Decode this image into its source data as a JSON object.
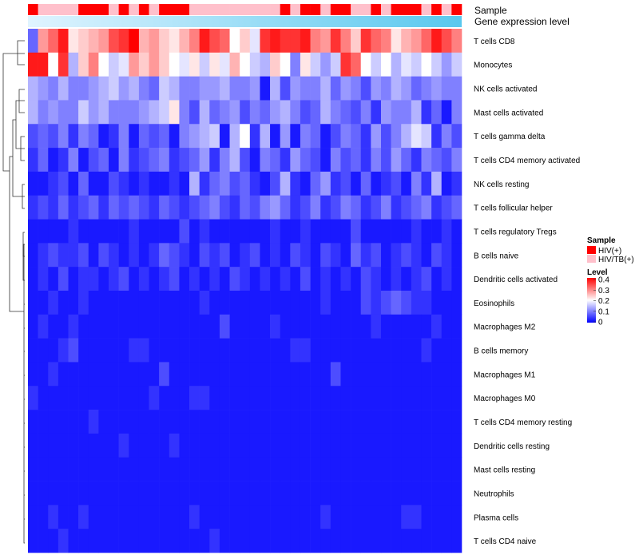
{
  "chart_data": {
    "type": "heatmap",
    "annotation_titles": [
      "Sample",
      "Gene expression level"
    ],
    "rows": [
      "T cells CD8",
      "Monocytes",
      "NK cells activated",
      "Mast cells activated",
      "T cells gamma delta",
      "T cells CD4 memory activated",
      "NK cells resting",
      "T cells follicular helper",
      "T cells regulatory  Tregs",
      "B cells naive",
      "Dendritic cells activated",
      "Eosinophils",
      "Macrophages M2",
      "B cells memory",
      "Macrophages M1",
      "Macrophages M0",
      "T cells CD4 memory resting",
      "Dendritic cells resting",
      "Mast cells resting",
      "Neutrophils",
      "Plasma cells",
      "T cells CD4 naive"
    ],
    "n_columns": 43,
    "sample_groups": [
      "HIV(+)",
      "HIV/TB(+)"
    ],
    "sample_colors": {
      "HIV(+)": "#ff0000",
      "HIV/TB(+)": "#ffc0cb"
    },
    "sample_sequence": [
      0,
      1,
      1,
      1,
      1,
      0,
      0,
      0,
      1,
      0,
      1,
      0,
      1,
      0,
      0,
      0,
      1,
      1,
      1,
      1,
      1,
      1,
      1,
      1,
      1,
      0,
      1,
      0,
      0,
      1,
      0,
      0,
      1,
      1,
      0,
      1,
      0,
      0,
      0,
      1,
      0,
      1,
      0
    ],
    "expression_gradient": [
      "#e0f4ff",
      "#59c8ee"
    ],
    "legend": {
      "sample_title": "Sample",
      "level_title": "Level",
      "level_ticks": [
        "0.4",
        "0.3",
        "0.2",
        "0.1",
        "0"
      ],
      "position": "right"
    },
    "color_scale": {
      "min": 0,
      "max": 0.4,
      "colors": [
        "#0000ff",
        "#ffffff",
        "#ff0000"
      ]
    },
    "row_values": [
      [
        0.08,
        0.28,
        0.32,
        0.38,
        0.22,
        0.24,
        0.26,
        0.28,
        0.34,
        0.36,
        0.4,
        0.26,
        0.28,
        0.24,
        0.22,
        0.26,
        0.3,
        0.38,
        0.34,
        0.32,
        0.2,
        0.24,
        0.18,
        0.36,
        0.38,
        0.36,
        0.36,
        0.38,
        0.3,
        0.28,
        0.36,
        0.3,
        0.24,
        0.36,
        0.32,
        0.3,
        0.22,
        0.26,
        0.28,
        0.32,
        0.38,
        0.34,
        0.3
      ],
      [
        0.38,
        0.38,
        0.2,
        0.36,
        0.14,
        0.24,
        0.3,
        0.2,
        0.16,
        0.18,
        0.28,
        0.24,
        0.28,
        0.24,
        0.2,
        0.18,
        0.22,
        0.16,
        0.22,
        0.18,
        0.26,
        0.2,
        0.16,
        0.14,
        0.24,
        0.2,
        0.1,
        0.22,
        0.16,
        0.12,
        0.16,
        0.36,
        0.32,
        0.2,
        0.16,
        0.2,
        0.14,
        0.18,
        0.16,
        0.2,
        0.16,
        0.12,
        0.16
      ],
      [
        0.14,
        0.12,
        0.1,
        0.14,
        0.1,
        0.1,
        0.12,
        0.14,
        0.16,
        0.12,
        0.14,
        0.1,
        0.08,
        0.16,
        0.14,
        0.1,
        0.1,
        0.12,
        0.12,
        0.14,
        0.1,
        0.1,
        0.12,
        0.02,
        0.14,
        0.06,
        0.12,
        0.1,
        0.1,
        0.14,
        0.08,
        0.12,
        0.1,
        0.06,
        0.12,
        0.1,
        0.14,
        0.12,
        0.08,
        0.1,
        0.12,
        0.1,
        0.1
      ],
      [
        0.14,
        0.1,
        0.12,
        0.1,
        0.1,
        0.16,
        0.12,
        0.14,
        0.1,
        0.1,
        0.1,
        0.12,
        0.14,
        0.16,
        0.22,
        0.1,
        0.06,
        0.14,
        0.08,
        0.1,
        0.12,
        0.06,
        0.1,
        0.08,
        0.12,
        0.14,
        0.1,
        0.06,
        0.08,
        0.14,
        0.1,
        0.08,
        0.06,
        0.1,
        0.04,
        0.12,
        0.1,
        0.1,
        0.14,
        0.04,
        0.08,
        0.02,
        0.1
      ],
      [
        0.06,
        0.08,
        0.06,
        0.1,
        0.04,
        0.1,
        0.08,
        0.02,
        0.04,
        0.1,
        0.02,
        0.08,
        0.06,
        0.08,
        0.02,
        0.1,
        0.12,
        0.14,
        0.16,
        0.02,
        0.14,
        0.2,
        0.04,
        0.14,
        0.02,
        0.12,
        0.02,
        0.1,
        0.08,
        0.02,
        0.06,
        0.1,
        0.08,
        0.04,
        0.12,
        0.06,
        0.1,
        0.14,
        0.18,
        0.16,
        0.04,
        0.1,
        0.06
      ],
      [
        0.04,
        0.08,
        0.02,
        0.04,
        0.1,
        0.02,
        0.06,
        0.08,
        0.02,
        0.1,
        0.04,
        0.06,
        0.08,
        0.1,
        0.04,
        0.06,
        0.08,
        0.12,
        0.04,
        0.1,
        0.14,
        0.06,
        0.02,
        0.1,
        0.08,
        0.04,
        0.12,
        0.08,
        0.06,
        0.02,
        0.1,
        0.06,
        0.08,
        0.04,
        0.1,
        0.06,
        0.12,
        0.08,
        0.04,
        0.1,
        0.08,
        0.06,
        0.1
      ],
      [
        0.02,
        0.02,
        0.04,
        0.06,
        0.02,
        0.08,
        0.02,
        0.02,
        0.06,
        0.04,
        0.02,
        0.04,
        0.02,
        0.02,
        0.04,
        0.02,
        0.14,
        0.04,
        0.08,
        0.1,
        0.06,
        0.08,
        0.04,
        0.02,
        0.06,
        0.14,
        0.04,
        0.02,
        0.08,
        0.12,
        0.04,
        0.06,
        0.02,
        0.08,
        0.02,
        0.04,
        0.06,
        0.02,
        0.1,
        0.04,
        0.14,
        0.02,
        0.04
      ],
      [
        0.04,
        0.06,
        0.04,
        0.08,
        0.04,
        0.06,
        0.08,
        0.04,
        0.08,
        0.06,
        0.08,
        0.06,
        0.04,
        0.08,
        0.06,
        0.04,
        0.06,
        0.08,
        0.1,
        0.06,
        0.04,
        0.08,
        0.06,
        0.1,
        0.12,
        0.08,
        0.04,
        0.06,
        0.1,
        0.04,
        0.06,
        0.1,
        0.08,
        0.04,
        0.06,
        0.1,
        0.04,
        0.06,
        0.08,
        0.1,
        0.04,
        0.06,
        0.08
      ],
      [
        0.02,
        0.02,
        0.02,
        0.02,
        0.04,
        0.02,
        0.02,
        0.02,
        0.02,
        0.02,
        0.04,
        0.02,
        0.02,
        0.02,
        0.02,
        0.06,
        0.02,
        0.04,
        0.02,
        0.02,
        0.02,
        0.02,
        0.02,
        0.02,
        0.04,
        0.02,
        0.02,
        0.04,
        0.02,
        0.02,
        0.02,
        0.02,
        0.06,
        0.02,
        0.02,
        0.02,
        0.02,
        0.02,
        0.04,
        0.02,
        0.02,
        0.04,
        0.02
      ],
      [
        0.02,
        0.04,
        0.06,
        0.04,
        0.04,
        0.06,
        0.02,
        0.06,
        0.04,
        0.02,
        0.04,
        0.02,
        0.04,
        0.08,
        0.06,
        0.04,
        0.02,
        0.06,
        0.04,
        0.06,
        0.02,
        0.04,
        0.06,
        0.02,
        0.04,
        0.02,
        0.06,
        0.04,
        0.02,
        0.06,
        0.04,
        0.02,
        0.08,
        0.04,
        0.06,
        0.02,
        0.04,
        0.06,
        0.04,
        0.02,
        0.06,
        0.04,
        0.02
      ],
      [
        0.02,
        0.04,
        0.02,
        0.06,
        0.02,
        0.04,
        0.04,
        0.02,
        0.04,
        0.06,
        0.02,
        0.04,
        0.02,
        0.04,
        0.06,
        0.02,
        0.04,
        0.02,
        0.04,
        0.02,
        0.06,
        0.04,
        0.02,
        0.04,
        0.02,
        0.04,
        0.02,
        0.06,
        0.02,
        0.04,
        0.02,
        0.04,
        0.02,
        0.06,
        0.04,
        0.02,
        0.04,
        0.02,
        0.04,
        0.06,
        0.02,
        0.04,
        0.02
      ],
      [
        0.02,
        0.02,
        0.04,
        0.02,
        0.02,
        0.04,
        0.02,
        0.02,
        0.02,
        0.02,
        0.02,
        0.02,
        0.02,
        0.02,
        0.02,
        0.02,
        0.02,
        0.04,
        0.02,
        0.02,
        0.02,
        0.02,
        0.02,
        0.02,
        0.02,
        0.02,
        0.02,
        0.02,
        0.02,
        0.04,
        0.02,
        0.02,
        0.02,
        0.06,
        0.04,
        0.06,
        0.08,
        0.06,
        0.04,
        0.04,
        0.02,
        0.02,
        0.02
      ],
      [
        0.02,
        0.04,
        0.02,
        0.02,
        0.04,
        0.02,
        0.02,
        0.02,
        0.02,
        0.02,
        0.02,
        0.02,
        0.02,
        0.02,
        0.02,
        0.02,
        0.02,
        0.02,
        0.02,
        0.06,
        0.02,
        0.02,
        0.02,
        0.02,
        0.04,
        0.02,
        0.02,
        0.02,
        0.02,
        0.02,
        0.02,
        0.02,
        0.02,
        0.02,
        0.04,
        0.02,
        0.02,
        0.02,
        0.02,
        0.02,
        0.04,
        0.02,
        0.02
      ],
      [
        0.02,
        0.02,
        0.02,
        0.04,
        0.06,
        0.02,
        0.02,
        0.02,
        0.02,
        0.02,
        0.04,
        0.04,
        0.02,
        0.02,
        0.02,
        0.02,
        0.02,
        0.02,
        0.02,
        0.02,
        0.02,
        0.02,
        0.02,
        0.02,
        0.02,
        0.02,
        0.04,
        0.04,
        0.02,
        0.02,
        0.02,
        0.02,
        0.02,
        0.02,
        0.02,
        0.02,
        0.02,
        0.02,
        0.02,
        0.04,
        0.02,
        0.02,
        0.02
      ],
      [
        0.02,
        0.02,
        0.04,
        0.02,
        0.02,
        0.02,
        0.02,
        0.02,
        0.02,
        0.02,
        0.02,
        0.02,
        0.02,
        0.06,
        0.02,
        0.02,
        0.02,
        0.02,
        0.02,
        0.02,
        0.02,
        0.02,
        0.02,
        0.02,
        0.02,
        0.02,
        0.02,
        0.02,
        0.02,
        0.02,
        0.06,
        0.02,
        0.02,
        0.02,
        0.02,
        0.02,
        0.02,
        0.02,
        0.02,
        0.02,
        0.02,
        0.02,
        0.02
      ],
      [
        0.04,
        0.02,
        0.02,
        0.02,
        0.02,
        0.02,
        0.02,
        0.02,
        0.02,
        0.02,
        0.02,
        0.02,
        0.04,
        0.02,
        0.02,
        0.02,
        0.04,
        0.04,
        0.02,
        0.02,
        0.02,
        0.02,
        0.02,
        0.02,
        0.02,
        0.02,
        0.02,
        0.02,
        0.02,
        0.02,
        0.02,
        0.02,
        0.02,
        0.02,
        0.02,
        0.02,
        0.02,
        0.02,
        0.02,
        0.02,
        0.02,
        0.02,
        0.02
      ],
      [
        0.02,
        0.02,
        0.02,
        0.02,
        0.02,
        0.02,
        0.04,
        0.02,
        0.02,
        0.02,
        0.02,
        0.02,
        0.02,
        0.02,
        0.02,
        0.02,
        0.02,
        0.02,
        0.02,
        0.02,
        0.02,
        0.02,
        0.02,
        0.02,
        0.02,
        0.02,
        0.02,
        0.02,
        0.02,
        0.02,
        0.02,
        0.02,
        0.02,
        0.02,
        0.02,
        0.02,
        0.02,
        0.02,
        0.02,
        0.02,
        0.02,
        0.02,
        0.02
      ],
      [
        0.02,
        0.02,
        0.02,
        0.02,
        0.02,
        0.02,
        0.02,
        0.02,
        0.02,
        0.04,
        0.02,
        0.02,
        0.02,
        0.02,
        0.04,
        0.02,
        0.02,
        0.02,
        0.02,
        0.02,
        0.02,
        0.02,
        0.02,
        0.02,
        0.02,
        0.02,
        0.02,
        0.02,
        0.02,
        0.02,
        0.02,
        0.02,
        0.02,
        0.02,
        0.02,
        0.02,
        0.02,
        0.02,
        0.02,
        0.02,
        0.02,
        0.02,
        0.02
      ],
      [
        0.02,
        0.02,
        0.02,
        0.02,
        0.02,
        0.02,
        0.02,
        0.02,
        0.02,
        0.02,
        0.02,
        0.02,
        0.02,
        0.02,
        0.02,
        0.02,
        0.02,
        0.02,
        0.02,
        0.02,
        0.02,
        0.02,
        0.02,
        0.02,
        0.02,
        0.02,
        0.02,
        0.02,
        0.02,
        0.02,
        0.02,
        0.02,
        0.02,
        0.02,
        0.02,
        0.02,
        0.02,
        0.02,
        0.02,
        0.02,
        0.02,
        0.02,
        0.02
      ],
      [
        0.02,
        0.02,
        0.02,
        0.02,
        0.02,
        0.02,
        0.02,
        0.02,
        0.02,
        0.02,
        0.02,
        0.02,
        0.02,
        0.02,
        0.02,
        0.02,
        0.02,
        0.02,
        0.02,
        0.02,
        0.02,
        0.02,
        0.02,
        0.02,
        0.02,
        0.02,
        0.02,
        0.02,
        0.02,
        0.02,
        0.02,
        0.02,
        0.02,
        0.02,
        0.02,
        0.02,
        0.02,
        0.02,
        0.02,
        0.02,
        0.02,
        0.02,
        0.02
      ],
      [
        0.02,
        0.02,
        0.04,
        0.02,
        0.02,
        0.04,
        0.02,
        0.02,
        0.02,
        0.02,
        0.02,
        0.02,
        0.02,
        0.02,
        0.02,
        0.02,
        0.04,
        0.02,
        0.02,
        0.02,
        0.02,
        0.02,
        0.02,
        0.02,
        0.02,
        0.02,
        0.02,
        0.02,
        0.02,
        0.04,
        0.02,
        0.02,
        0.02,
        0.02,
        0.02,
        0.02,
        0.02,
        0.04,
        0.04,
        0.02,
        0.02,
        0.02,
        0.02
      ],
      [
        0.02,
        0.02,
        0.02,
        0.04,
        0.02,
        0.02,
        0.02,
        0.02,
        0.02,
        0.02,
        0.02,
        0.02,
        0.02,
        0.02,
        0.02,
        0.02,
        0.02,
        0.02,
        0.04,
        0.02,
        0.02,
        0.02,
        0.02,
        0.02,
        0.02,
        0.02,
        0.02,
        0.02,
        0.02,
        0.02,
        0.02,
        0.02,
        0.02,
        0.02,
        0.02,
        0.02,
        0.02,
        0.02,
        0.02,
        0.02,
        0.02,
        0.02,
        0.02
      ]
    ]
  }
}
